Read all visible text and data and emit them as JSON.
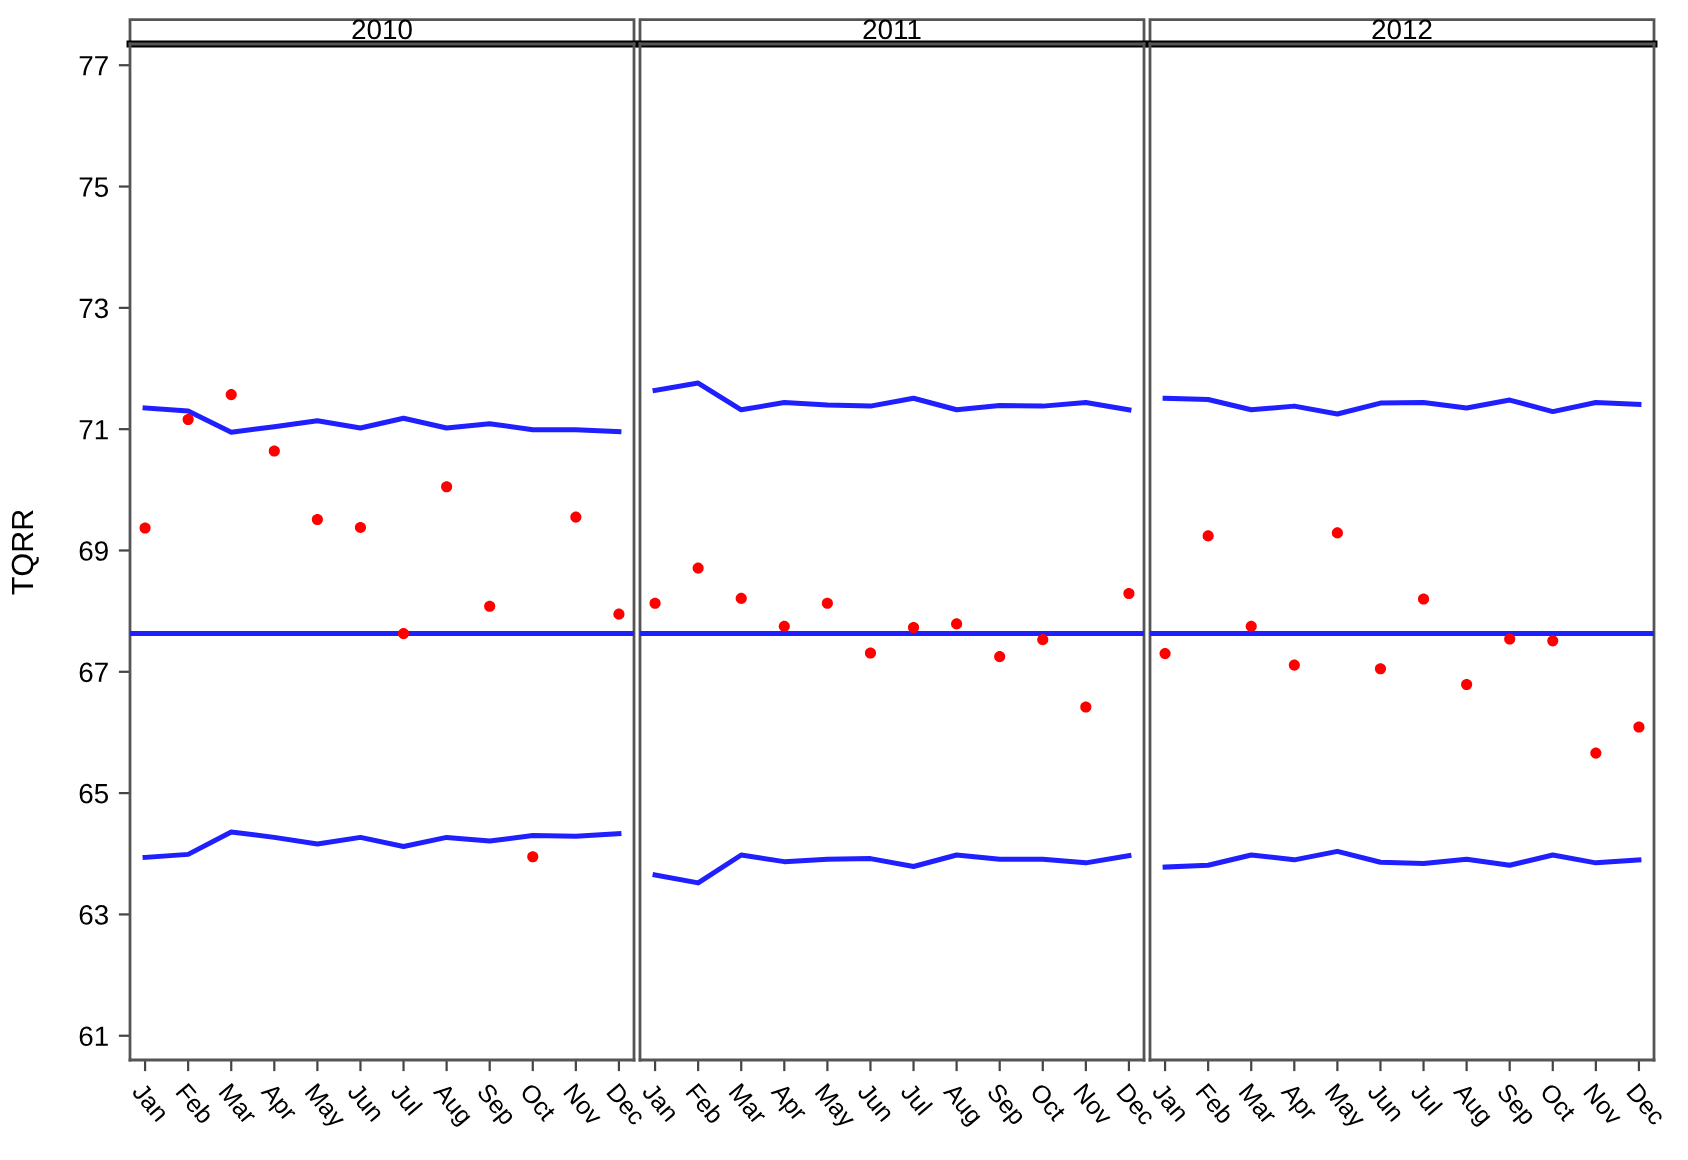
{
  "chart_data": [
    {
      "type": "scatter",
      "title": "2010",
      "ylabel": "TQRR",
      "categories": [
        "Jan",
        "Feb",
        "Mar",
        "Apr",
        "May",
        "Jun",
        "Jul",
        "Aug",
        "Sep",
        "Oct",
        "Nov",
        "Dec"
      ],
      "ylim": [
        60.6,
        77.35
      ],
      "yticks": [
        61,
        63,
        65,
        67,
        69,
        71,
        73,
        75,
        77
      ],
      "grid": false,
      "ref_lines": [
        {
          "axis": "y",
          "value": 67.63,
          "color": "#1f1fff"
        }
      ],
      "series": [
        {
          "type": "line",
          "color": "#1f1fff",
          "values": [
            71.35,
            71.3,
            70.95,
            71.04,
            71.14,
            71.02,
            71.18,
            71.02,
            71.09,
            70.99,
            70.99,
            70.96
          ]
        },
        {
          "type": "line",
          "color": "#1f1fff",
          "values": [
            63.94,
            63.99,
            64.36,
            64.27,
            64.16,
            64.27,
            64.12,
            64.27,
            64.21,
            64.3,
            64.29,
            64.33
          ]
        },
        {
          "color": "#ff0000",
          "marker": "circle",
          "values": [
            69.37,
            71.16,
            71.57,
            70.64,
            69.51,
            69.38,
            67.63,
            70.05,
            68.08,
            63.95,
            69.55,
            67.95
          ]
        }
      ]
    },
    {
      "type": "scatter",
      "title": "2011",
      "categories": [
        "Jan",
        "Feb",
        "Mar",
        "Apr",
        "May",
        "Jun",
        "Jul",
        "Aug",
        "Sep",
        "Oct",
        "Nov",
        "Dec"
      ],
      "ylim": [
        60.6,
        77.35
      ],
      "tick_labels": "x",
      "grid": false,
      "ref_lines": [
        {
          "axis": "y",
          "value": 67.63,
          "color": "#1f1fff"
        }
      ],
      "series": [
        {
          "type": "line",
          "color": "#1f1fff",
          "values": [
            71.64,
            71.76,
            71.32,
            71.44,
            71.4,
            71.38,
            71.51,
            71.32,
            71.39,
            71.38,
            71.44,
            71.32
          ]
        },
        {
          "type": "line",
          "color": "#1f1fff",
          "values": [
            63.65,
            63.52,
            63.98,
            63.87,
            63.91,
            63.92,
            63.79,
            63.98,
            63.91,
            63.91,
            63.85,
            63.97
          ]
        },
        {
          "color": "#ff0000",
          "marker": "circle",
          "values": [
            68.13,
            68.71,
            68.21,
            67.75,
            68.13,
            67.31,
            67.73,
            67.79,
            67.25,
            67.53,
            66.42,
            68.29
          ]
        }
      ]
    },
    {
      "type": "scatter",
      "title": "2012",
      "categories": [
        "Jan",
        "Feb",
        "Mar",
        "Apr",
        "May",
        "Jun",
        "Jul",
        "Aug",
        "Sep",
        "Oct",
        "Nov",
        "Dec"
      ],
      "ylim": [
        60.6,
        77.35
      ],
      "tick_labels": "x",
      "grid": false,
      "ref_lines": [
        {
          "axis": "y",
          "value": 67.63,
          "color": "#1f1fff"
        }
      ],
      "series": [
        {
          "type": "line",
          "color": "#1f1fff",
          "values": [
            71.51,
            71.49,
            71.32,
            71.38,
            71.25,
            71.43,
            71.44,
            71.35,
            71.48,
            71.29,
            71.44,
            71.41
          ]
        },
        {
          "type": "line",
          "color": "#1f1fff",
          "values": [
            63.78,
            63.81,
            63.98,
            63.9,
            64.04,
            63.86,
            63.84,
            63.91,
            63.81,
            63.98,
            63.85,
            63.9
          ]
        },
        {
          "color": "#ff0000",
          "marker": "circle",
          "values": [
            67.3,
            69.24,
            67.75,
            67.11,
            69.29,
            67.05,
            68.2,
            66.79,
            67.54,
            67.51,
            65.66,
            66.09
          ]
        }
      ]
    }
  ]
}
